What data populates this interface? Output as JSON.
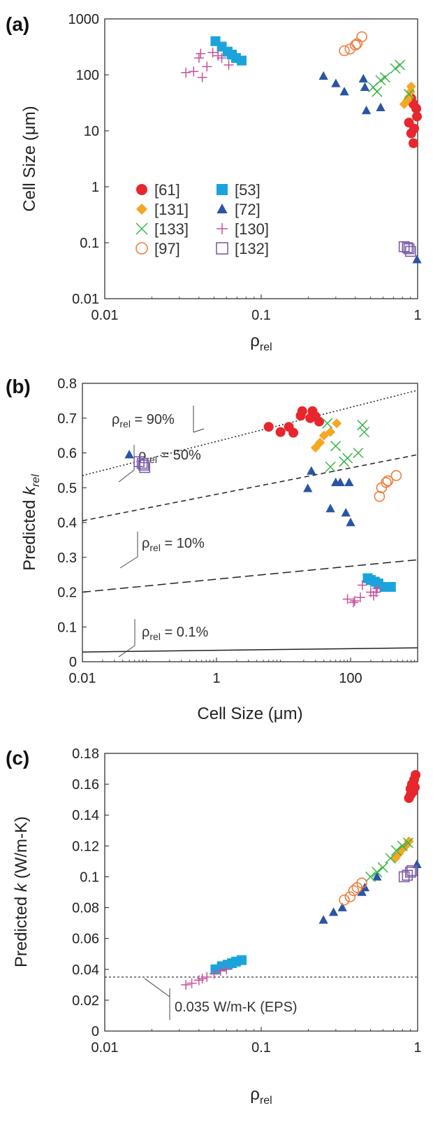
{
  "colors": {
    "ref61": "#e8262d",
    "ref53": "#1ba4dc",
    "ref131": "#f5a623",
    "ref72": "#2a54a4",
    "ref133": "#3bb54a",
    "ref130": "#c8519a",
    "ref97": "#ef7d3c",
    "ref132": "#7c5ea8",
    "axis": "#222222"
  },
  "chart_data": [
    {
      "panel": "(a)",
      "type": "scatter",
      "xlabel_main": "ρ",
      "xlabel_sub": "rel",
      "ylabel": "Cell Size (μm)",
      "xscale": "log",
      "yscale": "log",
      "xlim": [
        0.01,
        1
      ],
      "ylim": [
        0.01,
        1000
      ],
      "xticks": [
        "0.01",
        "0.1",
        "1"
      ],
      "yticks": [
        "0.01",
        "0.1",
        "1",
        "10",
        "100",
        "1000"
      ],
      "legend_position": "lower-left",
      "series": [
        {
          "name": "[61]",
          "key": "ref61",
          "marker": "circle",
          "points": [
            [
              0.91,
              38
            ],
            [
              0.94,
              30
            ],
            [
              0.98,
              25
            ],
            [
              0.99,
              18
            ],
            [
              0.88,
              14
            ],
            [
              0.95,
              11
            ],
            [
              0.91,
              9
            ],
            [
              0.94,
              6
            ]
          ]
        },
        {
          "name": "[53]",
          "key": "ref53",
          "marker": "square",
          "points": [
            [
              0.051,
              400
            ],
            [
              0.056,
              320
            ],
            [
              0.061,
              260
            ],
            [
              0.065,
              230
            ],
            [
              0.069,
              200
            ],
            [
              0.075,
              180
            ]
          ]
        },
        {
          "name": "[131]",
          "key": "ref131",
          "marker": "diamond",
          "points": [
            [
              0.82,
              30
            ],
            [
              0.86,
              35
            ],
            [
              0.88,
              40
            ],
            [
              0.9,
              50
            ],
            [
              0.91,
              62
            ]
          ]
        },
        {
          "name": "[72]",
          "key": "ref72",
          "marker": "triangle",
          "points": [
            [
              0.25,
              95
            ],
            [
              0.3,
              70
            ],
            [
              0.34,
              50
            ],
            [
              0.45,
              85
            ],
            [
              0.46,
              60
            ],
            [
              0.47,
              23
            ],
            [
              0.58,
              26
            ],
            [
              0.99,
              0.05
            ]
          ]
        },
        {
          "name": "[133]",
          "key": "ref133",
          "marker": "x",
          "points": [
            [
              0.52,
              60
            ],
            [
              0.58,
              80
            ],
            [
              0.62,
              90
            ],
            [
              0.72,
              130
            ],
            [
              0.77,
              150
            ],
            [
              0.55,
              50
            ],
            [
              0.88,
              45
            ]
          ]
        },
        {
          "name": "[130]",
          "key": "ref130",
          "marker": "plus",
          "points": [
            [
              0.033,
              110
            ],
            [
              0.037,
              115
            ],
            [
              0.04,
              200
            ],
            [
              0.041,
              240
            ],
            [
              0.042,
              90
            ],
            [
              0.045,
              140
            ],
            [
              0.049,
              250
            ],
            [
              0.053,
              220
            ],
            [
              0.056,
              200
            ],
            [
              0.062,
              150
            ]
          ]
        },
        {
          "name": "[97]",
          "key": "ref97",
          "marker": "circle-open",
          "points": [
            [
              0.34,
              270
            ],
            [
              0.37,
              290
            ],
            [
              0.4,
              340
            ],
            [
              0.41,
              360
            ],
            [
              0.44,
              480
            ]
          ]
        },
        {
          "name": "[132]",
          "key": "ref132",
          "marker": "square-open",
          "points": [
            [
              0.82,
              0.085
            ],
            [
              0.86,
              0.082
            ],
            [
              0.9,
              0.07
            ],
            [
              0.88,
              0.078
            ]
          ]
        }
      ]
    },
    {
      "panel": "(b)",
      "type": "scatter",
      "xlabel": "Cell Size (μm)",
      "ylabel_main": "Predicted ",
      "ylabel_italic": "k",
      "ylabel_sub": "rel",
      "xscale": "log",
      "yscale": "linear",
      "xlim": [
        0.01,
        1000
      ],
      "ylim": [
        0,
        0.8
      ],
      "xticks": [
        "0.01",
        "1",
        "100"
      ],
      "yticks": [
        "0",
        "0.1",
        "0.2",
        "0.3",
        "0.4",
        "0.5",
        "0.6",
        "0.7",
        "0.8"
      ],
      "lines": [
        {
          "label_main": "ρ",
          "label_sub": "rel",
          "label_value": " = 90%",
          "style": "dotted",
          "points": [
            [
              0.01,
              0.535
            ],
            [
              1000,
              0.78
            ]
          ]
        },
        {
          "label_main": "ρ",
          "label_sub": "rel",
          "label_value": " = 50%",
          "style": "dashed",
          "points": [
            [
              0.01,
              0.405
            ],
            [
              1000,
              0.595
            ]
          ]
        },
        {
          "label_main": "ρ",
          "label_sub": "rel",
          "label_value": " = 10%",
          "style": "longdash",
          "points": [
            [
              0.01,
              0.2
            ],
            [
              1000,
              0.293
            ]
          ]
        },
        {
          "label_main": "ρ",
          "label_sub": "rel",
          "label_value": " = 0.1%",
          "style": "solid",
          "points": [
            [
              0.01,
              0.028
            ],
            [
              1000,
              0.04
            ]
          ]
        }
      ],
      "series": [
        {
          "name": "[61]",
          "key": "ref61",
          "marker": "circle",
          "points": [
            [
              6,
              0.675
            ],
            [
              9,
              0.66
            ],
            [
              12,
              0.675
            ],
            [
              14,
              0.658
            ],
            [
              18,
              0.707
            ],
            [
              19,
              0.72
            ],
            [
              25,
              0.7
            ],
            [
              27,
              0.72
            ],
            [
              30,
              0.705
            ],
            [
              34,
              0.69
            ]
          ]
        },
        {
          "name": "[53]",
          "key": "ref53",
          "marker": "square",
          "points": [
            [
              180,
              0.24
            ],
            [
              200,
              0.235
            ],
            [
              230,
              0.23
            ],
            [
              260,
              0.225
            ],
            [
              320,
              0.215
            ],
            [
              400,
              0.215
            ]
          ]
        },
        {
          "name": "[131]",
          "key": "ref131",
          "marker": "diamond",
          "points": [
            [
              30,
              0.615
            ],
            [
              35,
              0.63
            ],
            [
              40,
              0.65
            ],
            [
              50,
              0.66
            ],
            [
              62,
              0.685
            ]
          ]
        },
        {
          "name": "[72]",
          "key": "ref72",
          "marker": "triangle",
          "points": [
            [
              0.05,
              0.595
            ],
            [
              23,
              0.498
            ],
            [
              26,
              0.548
            ],
            [
              50,
              0.44
            ],
            [
              60,
              0.515
            ],
            [
              70,
              0.515
            ],
            [
              85,
              0.428
            ],
            [
              95,
              0.515
            ],
            [
              100,
              0.4
            ]
          ]
        },
        {
          "name": "[133]",
          "key": "ref133",
          "marker": "x",
          "points": [
            [
              45,
              0.685
            ],
            [
              50,
              0.56
            ],
            [
              60,
              0.62
            ],
            [
              80,
              0.575
            ],
            [
              90,
              0.585
            ],
            [
              130,
              0.6
            ],
            [
              150,
              0.68
            ],
            [
              160,
              0.66
            ]
          ]
        },
        {
          "name": "[130]",
          "key": "ref130",
          "marker": "plus",
          "points": [
            [
              90,
              0.18
            ],
            [
              110,
              0.17
            ],
            [
              115,
              0.175
            ],
            [
              140,
              0.185
            ],
            [
              150,
              0.22
            ],
            [
              200,
              0.2
            ],
            [
              220,
              0.19
            ],
            [
              240,
              0.2
            ],
            [
              250,
              0.21
            ]
          ]
        },
        {
          "name": "[97]",
          "key": "ref97",
          "marker": "circle-open",
          "points": [
            [
              270,
              0.475
            ],
            [
              290,
              0.5
            ],
            [
              340,
              0.515
            ],
            [
              360,
              0.52
            ],
            [
              480,
              0.535
            ]
          ]
        },
        {
          "name": "[132]",
          "key": "ref132",
          "marker": "square-open",
          "points": [
            [
              0.07,
              0.575
            ],
            [
              0.078,
              0.57
            ],
            [
              0.082,
              0.565
            ],
            [
              0.085,
              0.558
            ]
          ]
        }
      ]
    },
    {
      "panel": "(c)",
      "type": "scatter",
      "xlabel_main": "ρ",
      "xlabel_sub": "rel",
      "ylabel_main": "Predicted ",
      "ylabel_italic": "k",
      "ylabel_rest": " (W/m-K)",
      "xscale": "log",
      "yscale": "linear",
      "xlim": [
        0.01,
        1
      ],
      "ylim": [
        0,
        0.18
      ],
      "xticks": [
        "0.01",
        "0.1",
        "1"
      ],
      "yticks": [
        "0",
        "0.02",
        "0.04",
        "0.06",
        "0.08",
        "0.1",
        "0.12",
        "0.14",
        "0.16",
        "0.18"
      ],
      "reference_line": {
        "label": "0.035 W/m-K (EPS)",
        "value": 0.035
      },
      "series": [
        {
          "name": "[61]",
          "key": "ref61",
          "marker": "circle",
          "points": [
            [
              0.88,
              0.151
            ],
            [
              0.9,
              0.153
            ],
            [
              0.92,
              0.16
            ],
            [
              0.93,
              0.155
            ],
            [
              0.95,
              0.163
            ],
            [
              0.97,
              0.166
            ],
            [
              0.96,
              0.158
            ],
            [
              0.9,
              0.157
            ]
          ]
        },
        {
          "name": "[53]",
          "key": "ref53",
          "marker": "square",
          "points": [
            [
              0.051,
              0.04
            ],
            [
              0.056,
              0.042
            ],
            [
              0.061,
              0.043
            ],
            [
              0.065,
              0.044
            ],
            [
              0.069,
              0.045
            ],
            [
              0.075,
              0.046
            ]
          ]
        },
        {
          "name": "[131]",
          "key": "ref131",
          "marker": "diamond",
          "points": [
            [
              0.72,
              0.112
            ],
            [
              0.76,
              0.115
            ],
            [
              0.8,
              0.118
            ],
            [
              0.84,
              0.12
            ],
            [
              0.88,
              0.123
            ]
          ]
        },
        {
          "name": "[72]",
          "key": "ref72",
          "marker": "triangle",
          "points": [
            [
              0.25,
              0.072
            ],
            [
              0.29,
              0.077
            ],
            [
              0.33,
              0.08
            ],
            [
              0.44,
              0.09
            ],
            [
              0.46,
              0.093
            ],
            [
              0.55,
              0.1
            ],
            [
              0.99,
              0.108
            ]
          ]
        },
        {
          "name": "[133]",
          "key": "ref133",
          "marker": "x",
          "points": [
            [
              0.5,
              0.1
            ],
            [
              0.55,
              0.103
            ],
            [
              0.6,
              0.106
            ],
            [
              0.67,
              0.112
            ],
            [
              0.73,
              0.117
            ],
            [
              0.8,
              0.12
            ],
            [
              0.87,
              0.122
            ]
          ]
        },
        {
          "name": "[130]",
          "key": "ref130",
          "marker": "plus",
          "points": [
            [
              0.033,
              0.03
            ],
            [
              0.036,
              0.031
            ],
            [
              0.04,
              0.033
            ],
            [
              0.042,
              0.034
            ],
            [
              0.045,
              0.035
            ],
            [
              0.05,
              0.037
            ],
            [
              0.055,
              0.039
            ],
            [
              0.06,
              0.04
            ]
          ]
        },
        {
          "name": "[97]",
          "key": "ref97",
          "marker": "circle-open",
          "points": [
            [
              0.34,
              0.085
            ],
            [
              0.37,
              0.087
            ],
            [
              0.39,
              0.091
            ],
            [
              0.41,
              0.093
            ],
            [
              0.44,
              0.096
            ]
          ]
        },
        {
          "name": "[132]",
          "key": "ref132",
          "marker": "square-open",
          "points": [
            [
              0.82,
              0.1
            ],
            [
              0.86,
              0.101
            ],
            [
              0.9,
              0.103
            ],
            [
              0.92,
              0.104
            ]
          ]
        }
      ]
    }
  ]
}
